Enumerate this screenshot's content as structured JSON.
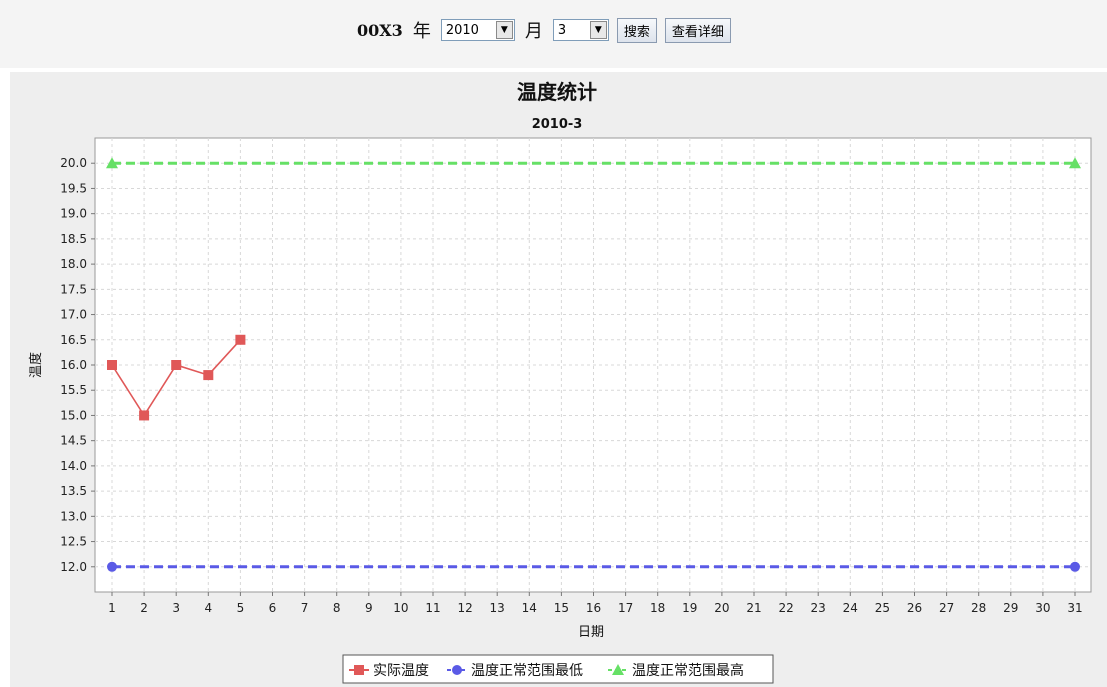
{
  "toolbar": {
    "station_code": "00X3",
    "year_label": "年",
    "year_value": "2010",
    "month_label": "月",
    "month_value": "3",
    "search_label": "搜索",
    "detail_label": "查看详细"
  },
  "chart_data": {
    "type": "line",
    "title": "温度统计",
    "subtitle": "2010-3",
    "xlabel": "日期",
    "ylabel": "温度",
    "ylim": [
      11.5,
      20.5
    ],
    "y_ticks": [
      "12.0",
      "12.5",
      "13.0",
      "13.5",
      "14.0",
      "14.5",
      "15.0",
      "15.5",
      "16.0",
      "16.5",
      "17.0",
      "17.5",
      "18.0",
      "18.5",
      "19.0",
      "19.5",
      "20.0"
    ],
    "categories": [
      "1",
      "2",
      "3",
      "4",
      "5",
      "6",
      "7",
      "8",
      "9",
      "10",
      "11",
      "12",
      "13",
      "14",
      "15",
      "16",
      "17",
      "18",
      "19",
      "20",
      "21",
      "22",
      "23",
      "24",
      "25",
      "26",
      "27",
      "28",
      "29",
      "30",
      "31"
    ],
    "grid": true,
    "legend_position": "bottom",
    "series": [
      {
        "name": "实际温度",
        "color": "#e05858",
        "marker": "square",
        "dashed": false,
        "points": [
          [
            1,
            16.0
          ],
          [
            2,
            15.0
          ],
          [
            3,
            16.0
          ],
          [
            4,
            15.8
          ],
          [
            5,
            16.5
          ]
        ]
      },
      {
        "name": "温度正常范围最低",
        "color": "#5a5ae6",
        "marker": "circle",
        "dashed": true,
        "points": [
          [
            1,
            12.0
          ],
          [
            31,
            12.0
          ]
        ]
      },
      {
        "name": "温度正常范围最高",
        "color": "#66e066",
        "marker": "triangle",
        "dashed": true,
        "points": [
          [
            1,
            20.0
          ],
          [
            31,
            20.0
          ]
        ]
      }
    ]
  }
}
